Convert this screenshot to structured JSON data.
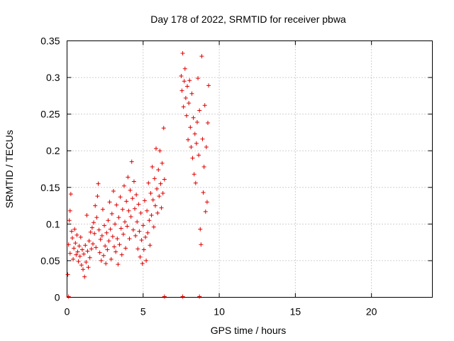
{
  "chart_data": {
    "type": "scatter",
    "title": "Day 178 of 2022, SRMTID for receiver pbwa",
    "xlabel": "GPS time / hours",
    "ylabel": "SRMTID / TECUs",
    "xlim": [
      0,
      24
    ],
    "ylim": [
      0,
      0.35
    ],
    "x_ticks": [
      0,
      5,
      10,
      15,
      20
    ],
    "x_tick_labels": [
      "0",
      "5",
      "10",
      "15",
      "20"
    ],
    "y_ticks": [
      0,
      0.05,
      0.1,
      0.15,
      0.2,
      0.25,
      0.3,
      0.35
    ],
    "y_tick_labels": [
      "0",
      "0.05",
      "0.1",
      "0.15",
      "0.2",
      "0.25",
      "0.3",
      "0.35"
    ],
    "grid": true,
    "marker": "plus",
    "series": [
      {
        "name": "SRMTID",
        "color": "#e00000",
        "points": [
          [
            0.05,
            0.031
          ],
          [
            0.1,
            0.072
          ],
          [
            0.1,
            0.001
          ],
          [
            0.15,
            0.105
          ],
          [
            0.2,
            0.118
          ],
          [
            0.2,
            0.06
          ],
          [
            0.25,
            0.141
          ],
          [
            0.3,
            0.09
          ],
          [
            0.35,
            0.081
          ],
          [
            0.4,
            0.052
          ],
          [
            0.45,
            0.067
          ],
          [
            0.5,
            0.093
          ],
          [
            0.55,
            0.074
          ],
          [
            0.6,
            0.058
          ],
          [
            0.65,
            0.085
          ],
          [
            0.7,
            0.062
          ],
          [
            0.75,
            0.049
          ],
          [
            0.8,
            0.07
          ],
          [
            0.85,
            0.056
          ],
          [
            0.9,
            0.082
          ],
          [
            0.95,
            0.044
          ],
          [
            1.0,
            0.065
          ],
          [
            1.05,
            0.038
          ],
          [
            1.1,
            0.059
          ],
          [
            1.15,
            0.028
          ],
          [
            1.2,
            0.071
          ],
          [
            1.25,
            0.048
          ],
          [
            1.3,
            0.112
          ],
          [
            1.35,
            0.063
          ],
          [
            1.4,
            0.041
          ],
          [
            1.45,
            0.077
          ],
          [
            1.5,
            0.054
          ],
          [
            1.55,
            0.089
          ],
          [
            1.6,
            0.066
          ],
          [
            1.65,
            0.095
          ],
          [
            1.7,
            0.073
          ],
          [
            1.75,
            0.102
          ],
          [
            1.8,
            0.087
          ],
          [
            1.85,
            0.125
          ],
          [
            1.9,
            0.068
          ],
          [
            1.95,
            0.109
          ],
          [
            2.0,
            0.138
          ],
          [
            2.05,
            0.155
          ],
          [
            2.1,
            0.092
          ],
          [
            2.15,
            0.061
          ],
          [
            2.2,
            0.079
          ],
          [
            2.25,
            0.05
          ],
          [
            2.3,
            0.084
          ],
          [
            2.35,
            0.12
          ],
          [
            2.4,
            0.057
          ],
          [
            2.45,
            0.098
          ],
          [
            2.5,
            0.07
          ],
          [
            2.55,
            0.046
          ],
          [
            2.6,
            0.088
          ],
          [
            2.65,
            0.065
          ],
          [
            2.7,
            0.105
          ],
          [
            2.75,
            0.077
          ],
          [
            2.8,
            0.13
          ],
          [
            2.85,
            0.093
          ],
          [
            2.9,
            0.052
          ],
          [
            2.95,
            0.114
          ],
          [
            3.0,
            0.083
          ],
          [
            3.05,
            0.145
          ],
          [
            3.1,
            0.069
          ],
          [
            3.15,
            0.1
          ],
          [
            3.2,
            0.062
          ],
          [
            3.25,
            0.126
          ],
          [
            3.3,
            0.08
          ],
          [
            3.35,
            0.045
          ],
          [
            3.4,
            0.109
          ],
          [
            3.45,
            0.072
          ],
          [
            3.5,
            0.137
          ],
          [
            3.55,
            0.094
          ],
          [
            3.6,
            0.058
          ],
          [
            3.65,
            0.12
          ],
          [
            3.7,
            0.086
          ],
          [
            3.75,
            0.152
          ],
          [
            3.8,
            0.103
          ],
          [
            3.85,
            0.067
          ],
          [
            3.9,
            0.131
          ],
          [
            3.95,
            0.097
          ],
          [
            4.0,
            0.164
          ],
          [
            4.05,
            0.118
          ],
          [
            4.1,
            0.08
          ],
          [
            4.15,
            0.146
          ],
          [
            4.2,
            0.11
          ],
          [
            4.25,
            0.185
          ],
          [
            4.3,
            0.135
          ],
          [
            4.35,
            0.092
          ],
          [
            4.4,
            0.158
          ],
          [
            4.45,
            0.121
          ],
          [
            4.5,
            0.084
          ],
          [
            4.55,
            0.14
          ],
          [
            4.6,
            0.103
          ],
          [
            4.65,
            0.066
          ],
          [
            4.7,
            0.127
          ],
          [
            4.75,
            0.09
          ],
          [
            4.8,
            0.055
          ],
          [
            4.85,
            0.115
          ],
          [
            4.9,
            0.078
          ],
          [
            4.95,
            0.046
          ],
          [
            5.0,
            0.098
          ],
          [
            5.05,
            0.065
          ],
          [
            5.1,
            0.132
          ],
          [
            5.15,
            0.082
          ],
          [
            5.2,
            0.05
          ],
          [
            5.25,
            0.118
          ],
          [
            5.3,
            0.088
          ],
          [
            5.35,
            0.156
          ],
          [
            5.4,
            0.105
          ],
          [
            5.45,
            0.071
          ],
          [
            5.5,
            0.142
          ],
          [
            5.55,
            0.112
          ],
          [
            5.6,
            0.178
          ],
          [
            5.65,
            0.133
          ],
          [
            5.7,
            0.096
          ],
          [
            5.75,
            0.162
          ],
          [
            5.8,
            0.125
          ],
          [
            5.85,
            0.203
          ],
          [
            5.9,
            0.148
          ],
          [
            5.95,
            0.115
          ],
          [
            6.0,
            0.174
          ],
          [
            6.05,
            0.138
          ],
          [
            6.1,
            0.2
          ],
          [
            6.15,
            0.155
          ],
          [
            6.2,
            0.122
          ],
          [
            6.25,
            0.183
          ],
          [
            6.3,
            0.142
          ],
          [
            6.35,
            0.231
          ],
          [
            6.4,
            0.161
          ],
          [
            6.4,
            0.001
          ],
          [
            7.5,
            0.302
          ],
          [
            7.55,
            0.282
          ],
          [
            7.6,
            0.333
          ],
          [
            7.6,
            0.001
          ],
          [
            7.65,
            0.26
          ],
          [
            7.7,
            0.295
          ],
          [
            7.75,
            0.312
          ],
          [
            7.8,
            0.272
          ],
          [
            7.85,
            0.248
          ],
          [
            7.9,
            0.288
          ],
          [
            7.95,
            0.215
          ],
          [
            8.0,
            0.265
          ],
          [
            8.05,
            0.296
          ],
          [
            8.1,
            0.232
          ],
          [
            8.15,
            0.205
          ],
          [
            8.2,
            0.278
          ],
          [
            8.25,
            0.19
          ],
          [
            8.3,
            0.245
          ],
          [
            8.35,
            0.168
          ],
          [
            8.4,
            0.223
          ],
          [
            8.45,
            0.156
          ],
          [
            8.5,
            0.21
          ],
          [
            8.55,
            0.239
          ],
          [
            8.6,
            0.299
          ],
          [
            8.65,
            0.194
          ],
          [
            8.7,
            0.001
          ],
          [
            8.7,
            0.255
          ],
          [
            8.75,
            0.093
          ],
          [
            8.8,
            0.072
          ],
          [
            8.85,
            0.329
          ],
          [
            8.9,
            0.216
          ],
          [
            8.95,
            0.143
          ],
          [
            9.0,
            0.178
          ],
          [
            9.05,
            0.262
          ],
          [
            9.1,
            0.117
          ],
          [
            9.15,
            0.205
          ],
          [
            9.2,
            0.13
          ],
          [
            9.25,
            0.238
          ],
          [
            9.3,
            0.289
          ]
        ]
      }
    ]
  }
}
